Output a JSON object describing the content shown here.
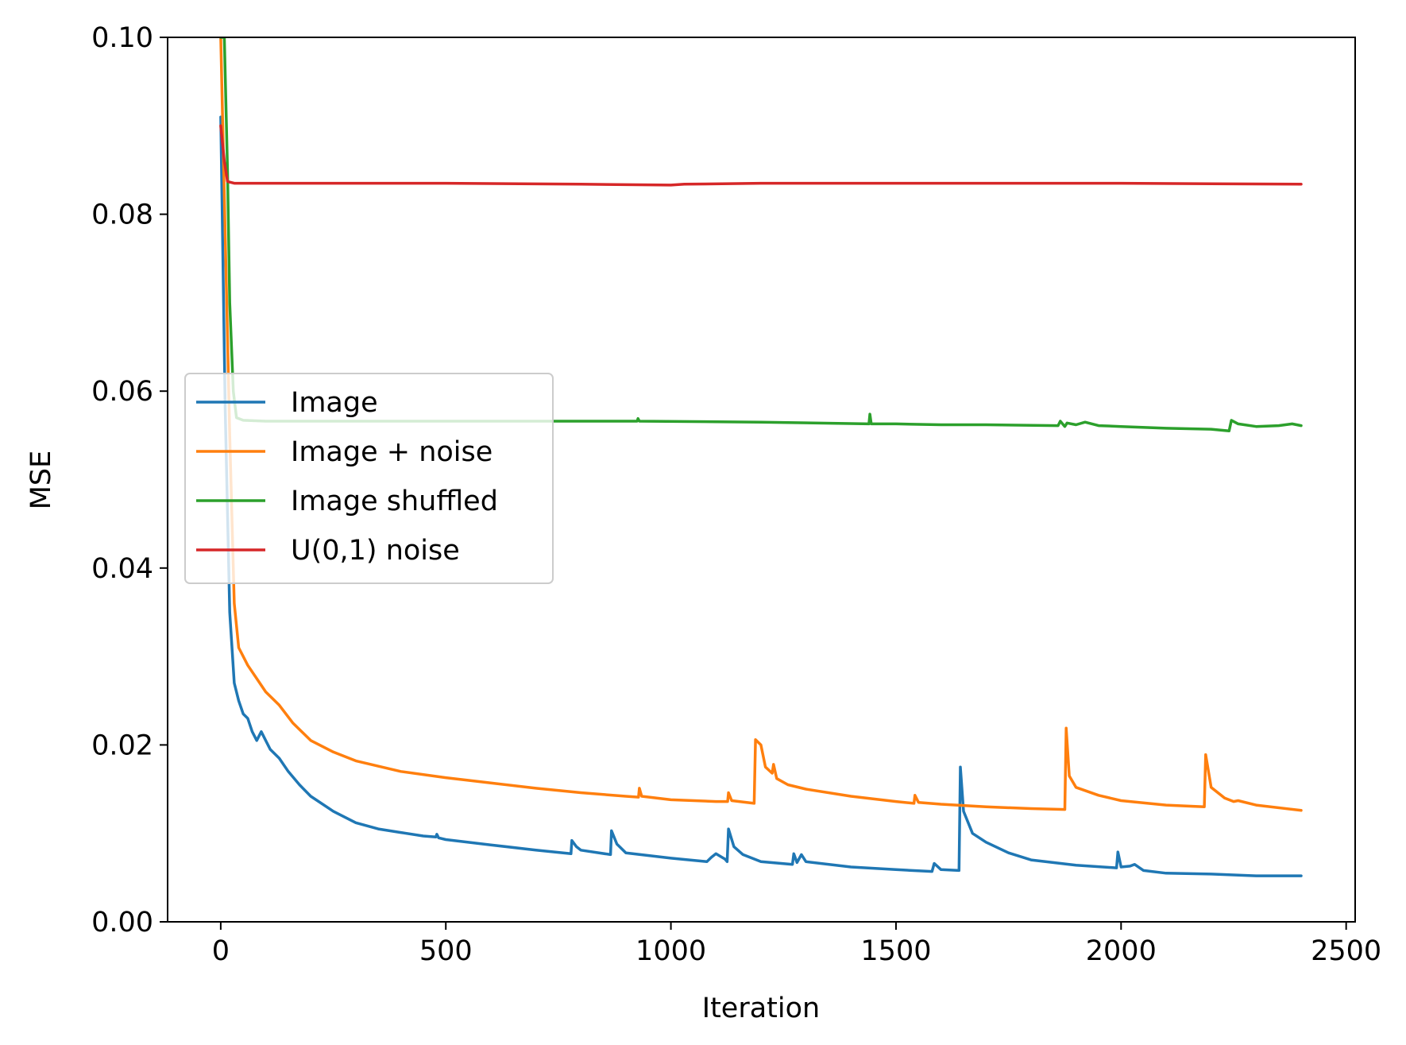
{
  "chart_data": {
    "type": "line",
    "title": "",
    "xlabel": "Iteration",
    "ylabel": "MSE",
    "xlim": [
      -118,
      2520
    ],
    "ylim": [
      0.0,
      0.1
    ],
    "xticks": [
      0,
      500,
      1000,
      1500,
      2000,
      2500
    ],
    "xtick_labels": [
      "0",
      "500",
      "1000",
      "1500",
      "2000",
      "2500"
    ],
    "yticks": [
      0.0,
      0.02,
      0.04,
      0.06,
      0.08,
      0.1
    ],
    "ytick_labels": [
      "0.00",
      "0.02",
      "0.04",
      "0.06",
      "0.08",
      "0.10"
    ],
    "grid": false,
    "legend_position": "center-left",
    "series": [
      {
        "name": "Image",
        "color": "#1f77b4",
        "points": [
          [
            0,
            0.091
          ],
          [
            10,
            0.058
          ],
          [
            20,
            0.035
          ],
          [
            30,
            0.027
          ],
          [
            40,
            0.025
          ],
          [
            50,
            0.0235
          ],
          [
            60,
            0.023
          ],
          [
            70,
            0.0215
          ],
          [
            80,
            0.0205
          ],
          [
            90,
            0.0215
          ],
          [
            100,
            0.0205
          ],
          [
            110,
            0.0195
          ],
          [
            130,
            0.0185
          ],
          [
            150,
            0.017
          ],
          [
            175,
            0.0155
          ],
          [
            200,
            0.0142
          ],
          [
            250,
            0.0125
          ],
          [
            300,
            0.0112
          ],
          [
            350,
            0.0105
          ],
          [
            400,
            0.0101
          ],
          [
            450,
            0.0097
          ],
          [
            478,
            0.0096
          ],
          [
            480,
            0.0099
          ],
          [
            484,
            0.0095
          ],
          [
            500,
            0.0093
          ],
          [
            600,
            0.0087
          ],
          [
            700,
            0.0081
          ],
          [
            778,
            0.0077
          ],
          [
            780,
            0.0092
          ],
          [
            790,
            0.0085
          ],
          [
            800,
            0.0081
          ],
          [
            866,
            0.0076
          ],
          [
            868,
            0.0103
          ],
          [
            880,
            0.0088
          ],
          [
            900,
            0.0078
          ],
          [
            1000,
            0.0072
          ],
          [
            1080,
            0.0068
          ],
          [
            1090,
            0.0073
          ],
          [
            1100,
            0.0077
          ],
          [
            1110,
            0.0074
          ],
          [
            1120,
            0.0071
          ],
          [
            1125,
            0.0068
          ],
          [
            1128,
            0.0105
          ],
          [
            1140,
            0.0085
          ],
          [
            1160,
            0.0076
          ],
          [
            1200,
            0.0068
          ],
          [
            1270,
            0.0065
          ],
          [
            1273,
            0.0077
          ],
          [
            1280,
            0.0067
          ],
          [
            1290,
            0.0076
          ],
          [
            1300,
            0.0068
          ],
          [
            1400,
            0.0062
          ],
          [
            1500,
            0.0059
          ],
          [
            1580,
            0.0057
          ],
          [
            1585,
            0.0066
          ],
          [
            1600,
            0.0059
          ],
          [
            1640,
            0.0058
          ],
          [
            1643,
            0.0175
          ],
          [
            1650,
            0.0125
          ],
          [
            1670,
            0.01
          ],
          [
            1700,
            0.009
          ],
          [
            1750,
            0.0078
          ],
          [
            1800,
            0.007
          ],
          [
            1900,
            0.0064
          ],
          [
            1990,
            0.0061
          ],
          [
            1993,
            0.0079
          ],
          [
            2000,
            0.0062
          ],
          [
            2020,
            0.0063
          ],
          [
            2030,
            0.0065
          ],
          [
            2050,
            0.0058
          ],
          [
            2100,
            0.0055
          ],
          [
            2200,
            0.0054
          ],
          [
            2300,
            0.0052
          ],
          [
            2400,
            0.0052
          ]
        ]
      },
      {
        "name": "Image + noise",
        "color": "#ff7f0e",
        "points": [
          [
            0,
            0.1
          ],
          [
            20,
            0.055
          ],
          [
            30,
            0.036
          ],
          [
            40,
            0.031
          ],
          [
            50,
            0.03
          ],
          [
            60,
            0.029
          ],
          [
            80,
            0.0275
          ],
          [
            100,
            0.026
          ],
          [
            130,
            0.0245
          ],
          [
            160,
            0.0225
          ],
          [
            200,
            0.0205
          ],
          [
            250,
            0.0192
          ],
          [
            300,
            0.0182
          ],
          [
            400,
            0.017
          ],
          [
            500,
            0.0163
          ],
          [
            600,
            0.0157
          ],
          [
            700,
            0.0151
          ],
          [
            800,
            0.0146
          ],
          [
            900,
            0.0142
          ],
          [
            928,
            0.0141
          ],
          [
            930,
            0.0151
          ],
          [
            935,
            0.0142
          ],
          [
            1000,
            0.0138
          ],
          [
            1100,
            0.0136
          ],
          [
            1126,
            0.0136
          ],
          [
            1128,
            0.0146
          ],
          [
            1135,
            0.0137
          ],
          [
            1185,
            0.0134
          ],
          [
            1188,
            0.0206
          ],
          [
            1200,
            0.02
          ],
          [
            1210,
            0.0175
          ],
          [
            1225,
            0.0168
          ],
          [
            1228,
            0.0178
          ],
          [
            1235,
            0.0162
          ],
          [
            1260,
            0.0155
          ],
          [
            1300,
            0.015
          ],
          [
            1400,
            0.0142
          ],
          [
            1500,
            0.0136
          ],
          [
            1540,
            0.0134
          ],
          [
            1542,
            0.0143
          ],
          [
            1550,
            0.0135
          ],
          [
            1600,
            0.0133
          ],
          [
            1700,
            0.013
          ],
          [
            1800,
            0.0128
          ],
          [
            1875,
            0.0127
          ],
          [
            1878,
            0.0219
          ],
          [
            1885,
            0.0165
          ],
          [
            1900,
            0.0152
          ],
          [
            1950,
            0.0143
          ],
          [
            2000,
            0.0137
          ],
          [
            2100,
            0.0132
          ],
          [
            2185,
            0.013
          ],
          [
            2188,
            0.0189
          ],
          [
            2200,
            0.0152
          ],
          [
            2230,
            0.014
          ],
          [
            2250,
            0.0136
          ],
          [
            2260,
            0.0137
          ],
          [
            2300,
            0.0132
          ],
          [
            2400,
            0.0126
          ]
        ]
      },
      {
        "name": "Image shuffled",
        "color": "#2ca02c",
        "points": [
          [
            0,
            0.1
          ],
          [
            8,
            0.1
          ],
          [
            15,
            0.085
          ],
          [
            20,
            0.07
          ],
          [
            28,
            0.06
          ],
          [
            35,
            0.057
          ],
          [
            50,
            0.0567
          ],
          [
            100,
            0.0566
          ],
          [
            300,
            0.0566
          ],
          [
            600,
            0.0566
          ],
          [
            925,
            0.0566
          ],
          [
            927,
            0.0569
          ],
          [
            930,
            0.0566
          ],
          [
            1200,
            0.0565
          ],
          [
            1440,
            0.0563
          ],
          [
            1442,
            0.0574
          ],
          [
            1445,
            0.0563
          ],
          [
            1500,
            0.0563
          ],
          [
            1600,
            0.0562
          ],
          [
            1700,
            0.0562
          ],
          [
            1860,
            0.0561
          ],
          [
            1865,
            0.0566
          ],
          [
            1875,
            0.056
          ],
          [
            1880,
            0.0564
          ],
          [
            1900,
            0.0562
          ],
          [
            1920,
            0.0565
          ],
          [
            1950,
            0.0561
          ],
          [
            2000,
            0.056
          ],
          [
            2100,
            0.0558
          ],
          [
            2200,
            0.0557
          ],
          [
            2240,
            0.0555
          ],
          [
            2245,
            0.0567
          ],
          [
            2260,
            0.0563
          ],
          [
            2300,
            0.056
          ],
          [
            2350,
            0.0561
          ],
          [
            2380,
            0.0563
          ],
          [
            2400,
            0.0561
          ]
        ]
      },
      {
        "name": "U(0,1) noise",
        "color": "#d62728",
        "points": [
          [
            0,
            0.09
          ],
          [
            8,
            0.086
          ],
          [
            15,
            0.0837
          ],
          [
            30,
            0.0835
          ],
          [
            100,
            0.0835
          ],
          [
            500,
            0.0835
          ],
          [
            800,
            0.0834
          ],
          [
            1000,
            0.0833
          ],
          [
            1030,
            0.0834
          ],
          [
            1200,
            0.0835
          ],
          [
            1600,
            0.0835
          ],
          [
            2000,
            0.0835
          ],
          [
            2400,
            0.0834
          ]
        ]
      }
    ]
  }
}
